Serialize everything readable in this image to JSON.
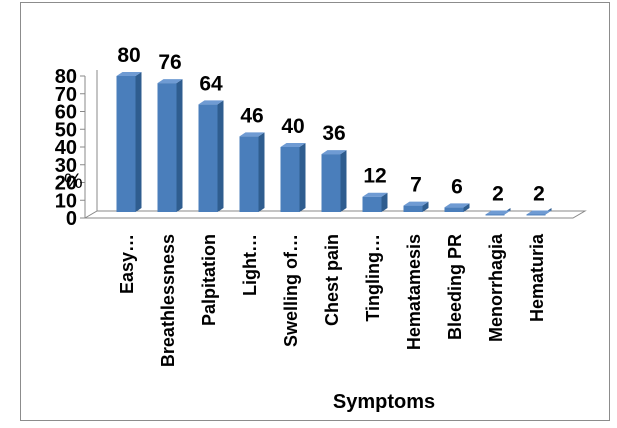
{
  "chart_data": {
    "type": "bar",
    "title": "",
    "xlabel": "Symptoms",
    "ylabel": "%",
    "ylim": [
      0,
      80
    ],
    "yticks": [
      0,
      10,
      20,
      30,
      40,
      50,
      60,
      70,
      80
    ],
    "grid": false,
    "legend": "none",
    "bar_color": "#4a7ebb",
    "categories": [
      "Easy…",
      "Breathlessness",
      "Palpitation",
      "Light…",
      "Swelling of…",
      "Chest pain",
      "Tingling…",
      "Hematamesis",
      "Bleeding PR",
      "Menorrhagia",
      "Hematuria"
    ],
    "values": [
      80,
      76,
      64,
      46,
      40,
      36,
      12,
      7,
      6,
      2,
      2
    ]
  }
}
